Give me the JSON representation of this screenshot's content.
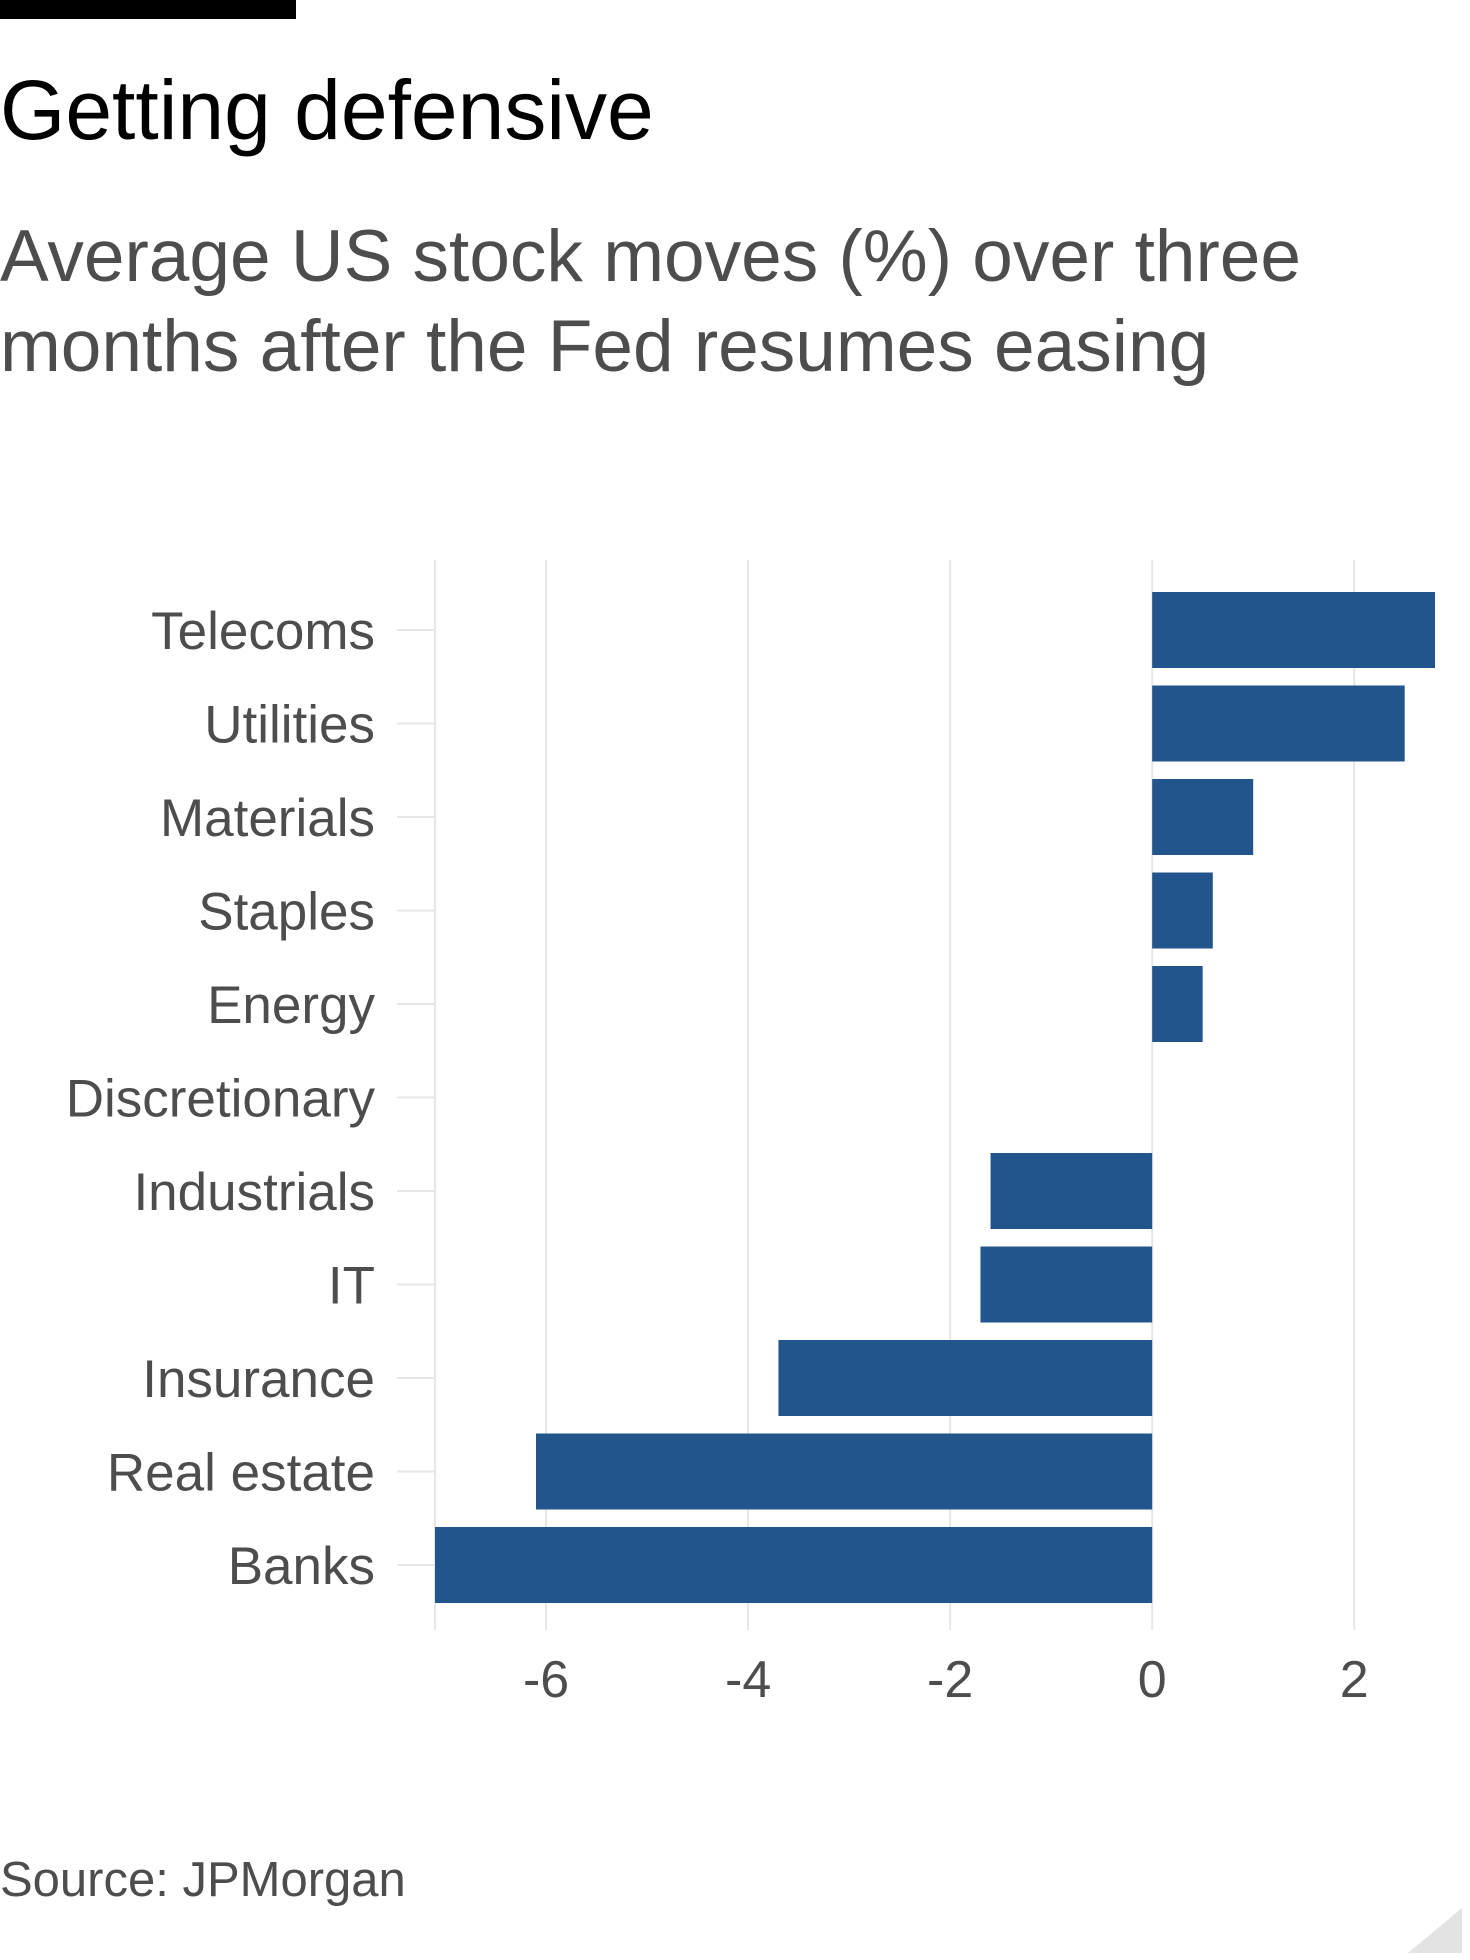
{
  "title": "Getting defensive",
  "subtitle": "Average US stock moves (%) over three months after the Fed resumes easing",
  "source": "Source: JPMorgan",
  "colors": {
    "bar": "#21558b",
    "grid": "#e6e6e6",
    "text": "#4d4d4d",
    "title": "#000000"
  },
  "chart_data": {
    "type": "bar",
    "orientation": "horizontal",
    "title": "Getting defensive",
    "subtitle": "Average US stock moves (%) over three months after the Fed resumes easing",
    "categories": [
      "Telecoms",
      "Utilities",
      "Materials",
      "Staples",
      "Energy",
      "Discretionary",
      "Industrials",
      "IT",
      "Insurance",
      "Real estate",
      "Banks"
    ],
    "values": [
      2.8,
      2.5,
      1.0,
      0.6,
      0.5,
      0.0,
      -1.6,
      -1.7,
      -3.7,
      -6.1,
      -7.1
    ],
    "xlim": [
      -7.1,
      2.8
    ],
    "xticks": [
      -6,
      -4,
      -2,
      0,
      2
    ],
    "xtick_labels": [
      "-6",
      "-4",
      "-2",
      "0",
      "2"
    ],
    "grid": true,
    "legend": "none",
    "xlabel": "",
    "ylabel": ""
  }
}
